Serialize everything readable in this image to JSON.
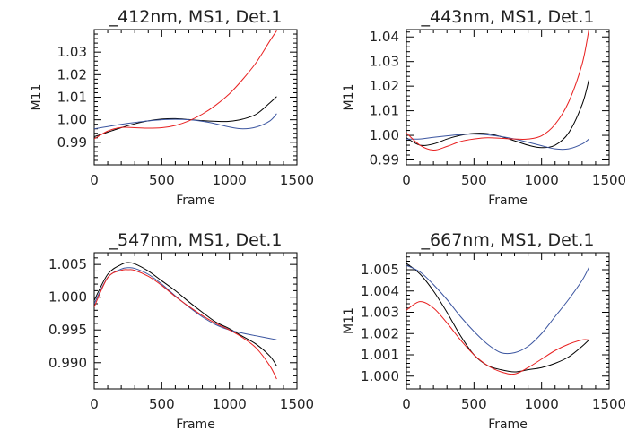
{
  "chart_data": [
    {
      "type": "line",
      "title": "_412nm, MS1, Det.1",
      "xlabel": "Frame",
      "ylabel": "M11",
      "xlim": [
        0,
        1500
      ],
      "ylim": [
        0.98,
        1.04
      ],
      "xticks": [
        0,
        500,
        1000,
        1500
      ],
      "xtick_labels": [
        "0",
        "500",
        "1000",
        "1500"
      ],
      "yticks": [
        0.99,
        1.0,
        1.01,
        1.02,
        1.03
      ],
      "ytick_labels": [
        "0.99",
        "1.00",
        "1.01",
        "1.02",
        "1.03"
      ],
      "x": [
        0,
        100,
        200,
        300,
        400,
        500,
        600,
        700,
        800,
        900,
        1000,
        1100,
        1200,
        1300,
        1350
      ],
      "series": [
        {
          "color": "#000000",
          "values": [
            0.9925,
            0.9945,
            0.9965,
            0.9982,
            0.9995,
            1.0003,
            1.0005,
            1.0001,
            0.9996,
            0.9993,
            0.9993,
            1.0003,
            1.0025,
            1.0075,
            1.0103
          ]
        },
        {
          "color": "#3b55a0",
          "values": [
            0.996,
            0.997,
            0.998,
            0.9988,
            0.9995,
            1.0,
            1.0002,
            1.0,
            0.9993,
            0.9982,
            0.9968,
            0.996,
            0.9968,
            0.9995,
            1.0027
          ]
        },
        {
          "color": "#e82020",
          "values": [
            0.9915,
            0.995,
            0.9966,
            0.9965,
            0.9963,
            0.9965,
            0.9975,
            0.9995,
            1.0025,
            1.0065,
            1.0115,
            1.018,
            1.0255,
            1.035,
            1.0395
          ]
        }
      ]
    },
    {
      "type": "line",
      "title": "_443nm, MS1, Det.1",
      "xlabel": "Frame",
      "ylabel": "M11",
      "xlim": [
        0,
        1500
      ],
      "ylim": [
        0.988,
        1.043
      ],
      "xticks": [
        0,
        500,
        1000,
        1500
      ],
      "xtick_labels": [
        "0",
        "500",
        "1000",
        "1500"
      ],
      "yticks": [
        0.99,
        1.0,
        1.01,
        1.02,
        1.03,
        1.04
      ],
      "ytick_labels": [
        "0.99",
        "1.00",
        "1.01",
        "1.02",
        "1.03",
        "1.04"
      ],
      "x": [
        0,
        100,
        200,
        300,
        400,
        500,
        600,
        700,
        800,
        900,
        1000,
        1100,
        1200,
        1300,
        1350
      ],
      "series": [
        {
          "color": "#000000",
          "values": [
            0.999,
            0.996,
            0.9965,
            0.9985,
            1.0,
            1.0008,
            1.0007,
            0.9995,
            0.9978,
            0.996,
            0.995,
            0.996,
            1.001,
            1.0125,
            1.0225
          ]
        },
        {
          "color": "#3b55a0",
          "values": [
            0.9985,
            0.9985,
            0.9992,
            0.9998,
            1.0003,
            1.0005,
            1.0002,
            0.9995,
            0.9985,
            0.9972,
            0.9958,
            0.9945,
            0.9945,
            0.9965,
            0.9985
          ]
        },
        {
          "color": "#e82020",
          "values": [
            1.001,
            0.996,
            0.994,
            0.9955,
            0.9975,
            0.9985,
            0.999,
            0.9988,
            0.9985,
            0.9985,
            0.9998,
            1.0045,
            1.0135,
            1.029,
            1.043
          ]
        }
      ]
    },
    {
      "type": "line",
      "title": "_547nm, MS1, Det.1",
      "xlabel": "Frame",
      "ylabel": "",
      "xlim": [
        0,
        1500
      ],
      "ylim": [
        0.986,
        1.0068
      ],
      "xticks": [
        0,
        500,
        1000,
        1500
      ],
      "xtick_labels": [
        "0",
        "500",
        "1000",
        "1500"
      ],
      "yticks": [
        0.99,
        0.995,
        1.0,
        1.005
      ],
      "ytick_labels": [
        "0.990",
        "0.995",
        "1.000",
        "1.005"
      ],
      "x": [
        0,
        100,
        200,
        250,
        300,
        400,
        500,
        600,
        700,
        800,
        900,
        1000,
        1100,
        1200,
        1300,
        1350
      ],
      "series": [
        {
          "color": "#000000",
          "values": [
            0.9995,
            1.0035,
            1.005,
            1.0053,
            1.0051,
            1.004,
            1.0025,
            1.001,
            0.9993,
            0.9977,
            0.9962,
            0.9952,
            0.994,
            0.9928,
            0.991,
            0.9895
          ]
        },
        {
          "color": "#3b55a0",
          "values": [
            0.999,
            1.003,
            1.0043,
            1.0045,
            1.0044,
            1.0035,
            1.002,
            1.0002,
            0.9985,
            0.997,
            0.9958,
            0.995,
            0.9945,
            0.9941,
            0.9937,
            0.9935
          ]
        },
        {
          "color": "#e82020",
          "values": [
            0.9985,
            1.003,
            1.0041,
            1.0042,
            1.0041,
            1.0032,
            1.0018,
            1.0001,
            0.9986,
            0.9972,
            0.996,
            0.995,
            0.9938,
            0.9922,
            0.9895,
            0.9875
          ]
        }
      ]
    },
    {
      "type": "line",
      "title": "_667nm, MS1, Det.1",
      "xlabel": "Frame",
      "ylabel": "M11",
      "xlim": [
        0,
        1500
      ],
      "ylim": [
        0.9994,
        1.0058
      ],
      "xticks": [
        0,
        500,
        1000,
        1500
      ],
      "xtick_labels": [
        "0",
        "500",
        "1000",
        "1500"
      ],
      "yticks": [
        1.0,
        1.001,
        1.002,
        1.003,
        1.004,
        1.005
      ],
      "ytick_labels": [
        "1.000",
        "1.001",
        "1.002",
        "1.003",
        "1.004",
        "1.005"
      ],
      "x": [
        0,
        100,
        200,
        300,
        400,
        500,
        600,
        700,
        800,
        900,
        1000,
        1100,
        1200,
        1300,
        1350
      ],
      "series": [
        {
          "color": "#000000",
          "values": [
            1.0053,
            1.0048,
            1.004,
            1.003,
            1.0019,
            1.001,
            1.0005,
            1.0003,
            1.0002,
            1.0003,
            1.0004,
            1.0006,
            1.0009,
            1.0014,
            1.0017
          ]
        },
        {
          "color": "#3b55a0",
          "values": [
            1.0052,
            1.0049,
            1.0043,
            1.0036,
            1.0028,
            1.0021,
            1.0015,
            1.0011,
            1.0011,
            1.0014,
            1.002,
            1.0028,
            1.0036,
            1.0045,
            1.0051
          ]
        },
        {
          "color": "#e82020",
          "values": [
            1.0031,
            1.0035,
            1.0032,
            1.0025,
            1.0017,
            1.001,
            1.0005,
            1.0002,
            1.0001,
            1.0004,
            1.0008,
            1.0012,
            1.0015,
            1.0017,
            1.0017
          ]
        }
      ]
    }
  ]
}
